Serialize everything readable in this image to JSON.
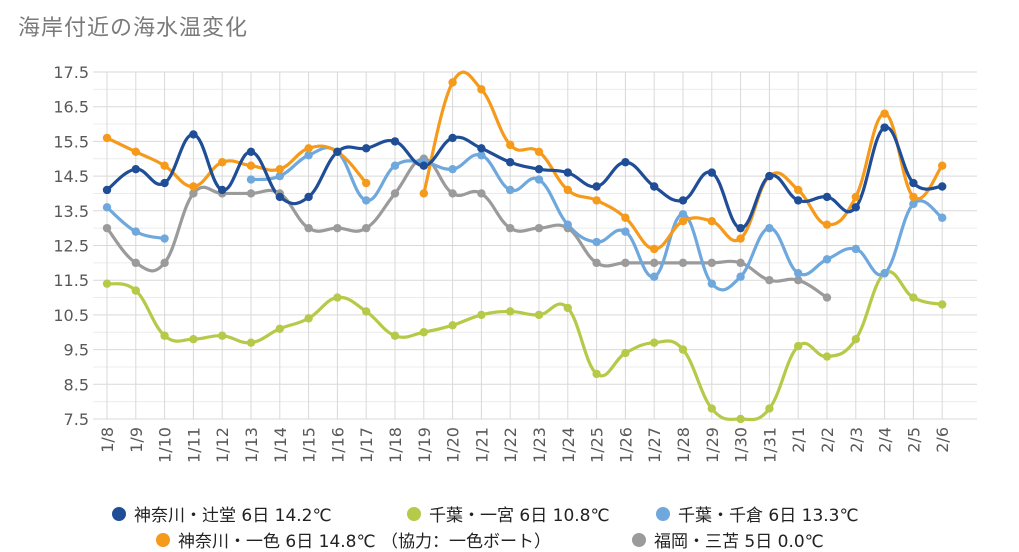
{
  "chart_data": {
    "type": "line",
    "title": "海岸付近の海水温変化",
    "ylim": [
      7.5,
      17.5
    ],
    "yticks": [
      "17.5",
      "16.5",
      "15.5",
      "14.5",
      "13.5",
      "12.5",
      "11.5",
      "10.5",
      "9.5",
      "8.5",
      "7.5"
    ],
    "grid": true,
    "legend_position": "bottom",
    "categories": [
      "1/8",
      "1/9",
      "1/10",
      "1/11",
      "1/12",
      "1/13",
      "1/14",
      "1/15",
      "1/16",
      "1/17",
      "1/18",
      "1/19",
      "1/20",
      "1/21",
      "1/22",
      "1/23",
      "1/24",
      "1/25",
      "1/26",
      "1/27",
      "1/28",
      "1/29",
      "1/30",
      "1/31",
      "2/1",
      "2/2",
      "2/3",
      "2/4",
      "2/5",
      "2/6"
    ],
    "series": [
      {
        "name": "神奈川・辻堂 6日 14.2℃",
        "color": "#1f4e97",
        "values": [
          14.1,
          14.7,
          14.3,
          15.7,
          14.1,
          15.2,
          13.9,
          13.9,
          15.2,
          15.3,
          15.5,
          14.8,
          15.6,
          15.3,
          14.9,
          14.7,
          14.6,
          14.2,
          14.9,
          14.2,
          13.8,
          14.6,
          13.0,
          14.5,
          13.8,
          13.9,
          13.6,
          15.9,
          14.3,
          14.2
        ]
      },
      {
        "name": "千葉・一宮 6日 10.8℃",
        "color": "#b7c948",
        "values": [
          11.4,
          11.2,
          9.9,
          9.8,
          9.9,
          9.7,
          10.1,
          10.4,
          11.0,
          10.6,
          9.9,
          10.0,
          10.2,
          10.5,
          10.6,
          10.5,
          10.7,
          8.8,
          9.4,
          9.7,
          9.5,
          7.8,
          7.5,
          7.8,
          9.6,
          9.3,
          9.8,
          11.7,
          11.0,
          10.8
        ]
      },
      {
        "name": "千葉・千倉 6日 13.3℃",
        "color": "#6fa8dc",
        "values": [
          13.6,
          12.9,
          12.7,
          null,
          null,
          14.4,
          14.5,
          15.1,
          15.2,
          13.8,
          14.8,
          14.9,
          14.7,
          15.1,
          14.1,
          14.4,
          13.1,
          12.6,
          12.9,
          11.6,
          13.4,
          11.4,
          11.6,
          13.0,
          11.7,
          12.1,
          12.4,
          11.7,
          13.7,
          13.3
        ]
      },
      {
        "name": "神奈川・一色 6日 14.8℃ （協力：一色ボート）",
        "color": "#f59a1b",
        "values": [
          15.6,
          15.2,
          14.8,
          14.2,
          14.9,
          14.8,
          14.7,
          15.3,
          15.2,
          14.3,
          null,
          14.0,
          17.2,
          17.0,
          15.4,
          15.2,
          14.1,
          13.8,
          13.3,
          12.4,
          13.2,
          13.2,
          12.7,
          14.5,
          14.1,
          13.1,
          13.9,
          16.3,
          13.9,
          14.8
        ]
      },
      {
        "name": "福岡・三苫 5日 0.0℃",
        "color": "#9b9b9b",
        "values": [
          13.0,
          12.0,
          12.0,
          14.0,
          14.0,
          14.0,
          14.0,
          13.0,
          13.0,
          13.0,
          14.0,
          15.0,
          14.0,
          14.0,
          13.0,
          13.0,
          13.0,
          12.0,
          12.0,
          12.0,
          12.0,
          12.0,
          12.0,
          11.5,
          11.5,
          11.0,
          null,
          null,
          null,
          null
        ]
      }
    ]
  },
  "legend": [
    {
      "label": "神奈川・辻堂 6日 14.2℃",
      "color": "#1f4e97"
    },
    {
      "label": "千葉・一宮 6日 10.8℃",
      "color": "#b7c948"
    },
    {
      "label": "千葉・千倉 6日 13.3℃",
      "color": "#6fa8dc"
    },
    {
      "label": "神奈川・一色 6日 14.8℃ （協力：一色ボート）",
      "color": "#f59a1b"
    },
    {
      "label": "福岡・三苫 5日 0.0℃",
      "color": "#9b9b9b"
    }
  ]
}
